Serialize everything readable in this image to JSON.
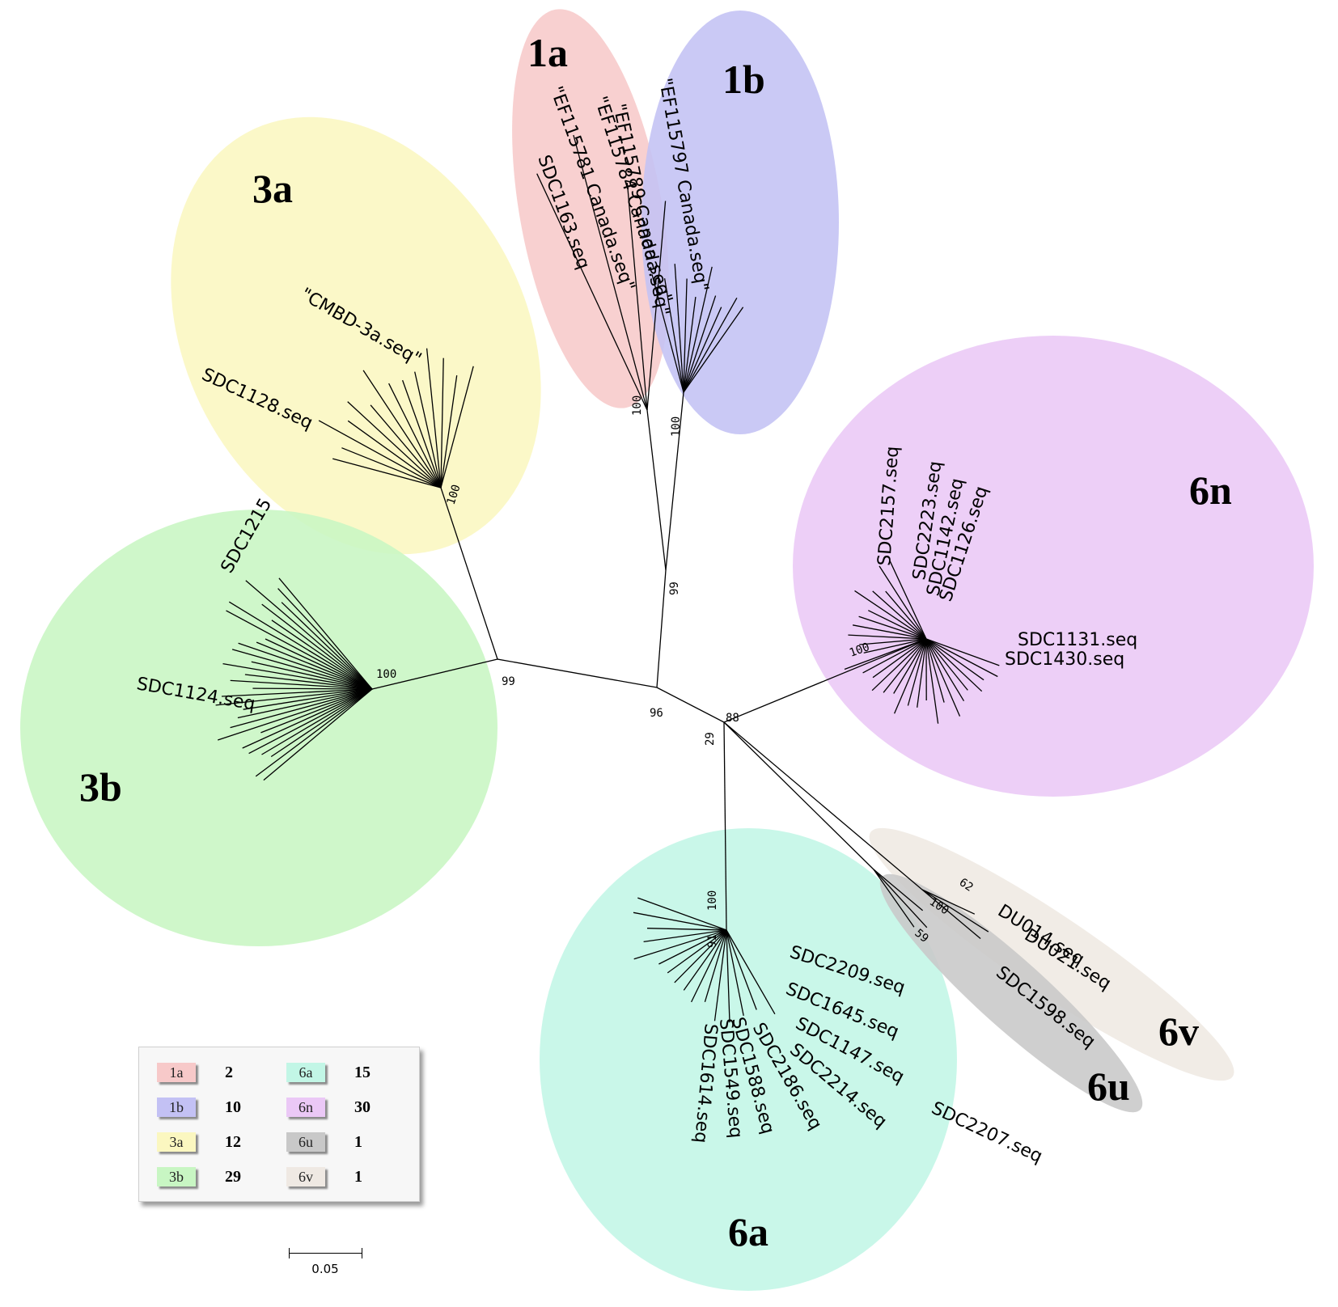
{
  "groups": [
    {
      "id": "1a",
      "label": "1a",
      "color": "#f7c9c9",
      "count": "2"
    },
    {
      "id": "1b",
      "label": "1b",
      "color": "#c3c1f4",
      "count": "10"
    },
    {
      "id": "3a",
      "label": "3a",
      "color": "#fbf7c0",
      "count": "12"
    },
    {
      "id": "3b",
      "label": "3b",
      "color": "#c8f6c3",
      "count": "29"
    },
    {
      "id": "6a",
      "label": "6a",
      "color": "#c2f6e6",
      "count": "15"
    },
    {
      "id": "6n",
      "label": "6n",
      "color": "#ebc8f6",
      "count": "30"
    },
    {
      "id": "6u",
      "label": "6u",
      "color": "#c8c8c8",
      "count": "1"
    },
    {
      "id": "6v",
      "label": "6v",
      "color": "#efe9e3",
      "count": "1"
    }
  ],
  "bootstrap": {
    "b99a": "99",
    "b96": "96",
    "b99b": "99",
    "b88": "88",
    "b29": "29",
    "b100_1a": "100",
    "b100_1b": "100",
    "b100_3a": "100",
    "b100_3b": "100",
    "b100_6n": "100",
    "b100_6a": "100",
    "b91": "91",
    "b62": "62",
    "b100_6uv": "100",
    "b59": "59"
  },
  "leaves": {
    "l6n_1": "SDC2157.seq",
    "l6n_2": "SDC2223.seq",
    "l6n_3": "SDC1142.seq",
    "l6n_4": "SDC1126.seq",
    "l6n_5": "SDC1131.seq",
    "l6n_6": "SDC1430.seq",
    "l6a_1": "SDC2209.seq",
    "l6a_2": "SDC1645.seq",
    "l6a_3": "SDC1147.seq",
    "l6a_4": "SDC2207.seq",
    "l6a_5": "SDC2214.seq",
    "l6a_6": "SDC1588.seq",
    "l6a_7": "SDC1549.seq",
    "l6a_8": "SDC1614.seq",
    "l6a_9": "SDC2186.seq",
    "l6v_1": "DU014.seq",
    "l6v_2": "DU021.seq",
    "l6u_1": "SDC1598.seq",
    "l1a_1": "\"EF115784 Canada.seq\"",
    "l1a_2": "\"EF115781 Canada.seq\"",
    "l1a_3": "SDC1163.seq",
    "l1b_1": "\"EF115789 Canada.seq\"",
    "l1b_2": "\"EF115797 Canada.seq\"",
    "l3a_1": "SDC1128.seq",
    "l3a_2": "\"CMBD-3a.seq\"",
    "l3b_1": "SDC1215",
    "l3b_2": "SDC1124.seq"
  },
  "scalebar": {
    "label": "0.05"
  }
}
